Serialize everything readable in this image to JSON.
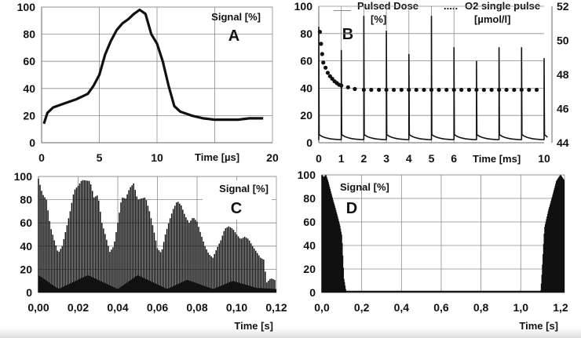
{
  "chart_data": [
    {
      "panel": "A",
      "type": "line",
      "panel_label": "A",
      "ylabel": "Signal [%]",
      "xlabel": "Time [µs]",
      "xlim": [
        0,
        20
      ],
      "ylim": [
        0,
        100
      ],
      "xticks": [
        "0",
        "5",
        "10",
        "20"
      ],
      "xtick_values": [
        0,
        5,
        10,
        20
      ],
      "yticks": [
        "0",
        "20",
        "40",
        "60",
        "80",
        "100"
      ],
      "grid": true,
      "x": [
        0.2,
        0.5,
        1,
        2,
        3,
        4,
        4.5,
        5,
        5.5,
        6,
        6.5,
        7,
        7.5,
        8,
        8.5,
        9,
        9.5,
        10,
        10.5,
        11,
        11.5,
        12,
        13,
        14,
        15,
        16,
        17,
        18,
        19.2
      ],
      "y": [
        14,
        22,
        26,
        29,
        32,
        36,
        42,
        50,
        65,
        75,
        83,
        88,
        91,
        95,
        98,
        95,
        80,
        73,
        60,
        42,
        27,
        23,
        20,
        18,
        17,
        17,
        17,
        18,
        18
      ]
    },
    {
      "panel": "B",
      "type": "line",
      "panel_label": "B",
      "xlabel": "Time [ms]",
      "xlim": [
        0,
        10
      ],
      "ylim": [
        0,
        100
      ],
      "y2lim": [
        44,
        52
      ],
      "xticks": [
        "0",
        "1",
        "2",
        "3",
        "4",
        "5",
        "6",
        "10"
      ],
      "xtick_values": [
        0,
        1,
        2,
        3,
        4,
        5,
        6,
        10
      ],
      "yticks": [
        "0",
        "20",
        "40",
        "60",
        "80",
        "100"
      ],
      "y2ticks": [
        "44",
        "46",
        "48",
        "50",
        "52"
      ],
      "legend": [
        {
          "marker": "___",
          "name": "Pulsed Dose",
          "unit": "[%]"
        },
        {
          "marker": ".....",
          "name": "O2 single pulse",
          "unit": "[µmol/l]"
        }
      ],
      "series": [
        {
          "name": "Pulsed Dose",
          "axis": "left",
          "pulse_times": [
            0,
            1,
            2,
            3,
            4,
            5,
            6,
            7,
            8,
            9,
            10
          ],
          "peaks": [
            85,
            68,
            93,
            82,
            65,
            93,
            70,
            60,
            70,
            70,
            62
          ],
          "baseline_start": 6,
          "baseline_end": 2
        },
        {
          "name": "O2 single pulse",
          "axis": "right",
          "x": [
            0.05,
            0.1,
            0.15,
            0.2,
            0.3,
            0.4,
            0.5,
            0.6,
            0.7,
            0.8,
            0.9,
            1.0,
            1.3,
            1.6,
            2,
            2.33,
            2.67,
            3,
            3.33,
            3.67,
            4,
            4.33,
            4.67,
            5,
            5.33,
            5.67,
            6,
            6.33,
            6.67,
            7,
            7.33,
            7.67,
            8,
            8.33,
            8.67,
            9,
            9.33,
            9.67
          ],
          "y": [
            50.5,
            49.8,
            49.2,
            48.7,
            48.4,
            48.1,
            47.9,
            47.75,
            47.6,
            47.5,
            47.4,
            47.35,
            47.25,
            47.15,
            47.1,
            47.1,
            47.1,
            47.1,
            47.1,
            47.1,
            47.1,
            47.1,
            47.1,
            47.1,
            47.1,
            47.1,
            47.1,
            47.1,
            47.1,
            47.1,
            47.1,
            47.1,
            47.1,
            47.1,
            47.1,
            47.1,
            47.1,
            47.1
          ]
        }
      ]
    },
    {
      "panel": "C",
      "type": "bar",
      "panel_label": "C",
      "ylabel": "Signal [%]",
      "xlabel": "Time [s]",
      "xlim": [
        0,
        0.12
      ],
      "ylim": [
        0,
        100
      ],
      "xticks": [
        "0,00",
        "0,02",
        "0,04",
        "0,06",
        "0,08",
        "0,10",
        "0,12"
      ],
      "yticks": [
        "0",
        "20",
        "40",
        "60",
        "80",
        "100"
      ],
      "grid": true,
      "envelope_x": [
        0,
        0.002,
        0.004,
        0.006,
        0.008,
        0.01,
        0.012,
        0.014,
        0.016,
        0.018,
        0.02,
        0.022,
        0.026,
        0.028,
        0.03,
        0.032,
        0.034,
        0.036,
        0.038,
        0.04,
        0.042,
        0.044,
        0.046,
        0.048,
        0.05,
        0.054,
        0.056,
        0.058,
        0.06,
        0.062,
        0.064,
        0.066,
        0.068,
        0.07,
        0.072,
        0.074,
        0.076,
        0.078,
        0.08,
        0.082,
        0.084,
        0.086,
        0.088,
        0.09,
        0.092,
        0.094,
        0.096,
        0.098,
        0.1,
        0.102,
        0.104,
        0.106,
        0.108,
        0.11,
        0.112,
        0.114,
        0.1148,
        0.117,
        0.118,
        0.12
      ],
      "envelope_y": [
        98,
        85,
        80,
        57,
        45,
        34,
        40,
        55,
        70,
        88,
        92,
        97,
        96,
        82,
        84,
        60,
        48,
        35,
        40,
        60,
        82,
        81,
        90,
        94,
        80,
        82,
        70,
        55,
        38,
        34,
        50,
        62,
        72,
        79,
        75,
        66,
        60,
        65,
        61,
        50,
        40,
        33,
        30,
        38,
        45,
        55,
        57,
        55,
        50,
        46,
        48,
        46,
        40,
        35,
        30,
        28,
        8,
        12,
        12,
        10
      ],
      "base_x": [
        0,
        0.01,
        0.025,
        0.04,
        0.05,
        0.065,
        0.075,
        0.088,
        0.098,
        0.11,
        0.12
      ],
      "base_y": [
        15,
        3,
        15,
        3,
        15,
        3,
        11,
        3,
        10,
        4,
        3
      ]
    },
    {
      "panel": "D",
      "type": "bar",
      "panel_label": "D",
      "ylabel": "Signal [%]",
      "xlabel": "Time [s]",
      "xlim": [
        0,
        1.22
      ],
      "ylim": [
        0,
        100
      ],
      "xticks": [
        "0,0",
        "0,2",
        "0,4",
        "0,6",
        "0,8",
        "1,0",
        "1,2"
      ],
      "xtick_values": [
        0,
        0.2,
        0.4,
        0.6,
        0.8,
        1.0,
        1.2
      ],
      "yticks": [
        "0",
        "20",
        "40",
        "60",
        "80",
        "100"
      ],
      "grid": true,
      "envelope_x": [
        0,
        0.01,
        0.02,
        0.03,
        0.05,
        0.07,
        0.09,
        0.1,
        0.11,
        0.12,
        0.125,
        1.1,
        1.105,
        1.12,
        1.14,
        1.16,
        1.18,
        1.2,
        1.22
      ],
      "envelope_y": [
        100,
        98,
        100,
        95,
        82,
        70,
        57,
        48,
        12,
        2,
        0,
        0,
        10,
        55,
        70,
        82,
        95,
        100,
        95
      ]
    }
  ]
}
